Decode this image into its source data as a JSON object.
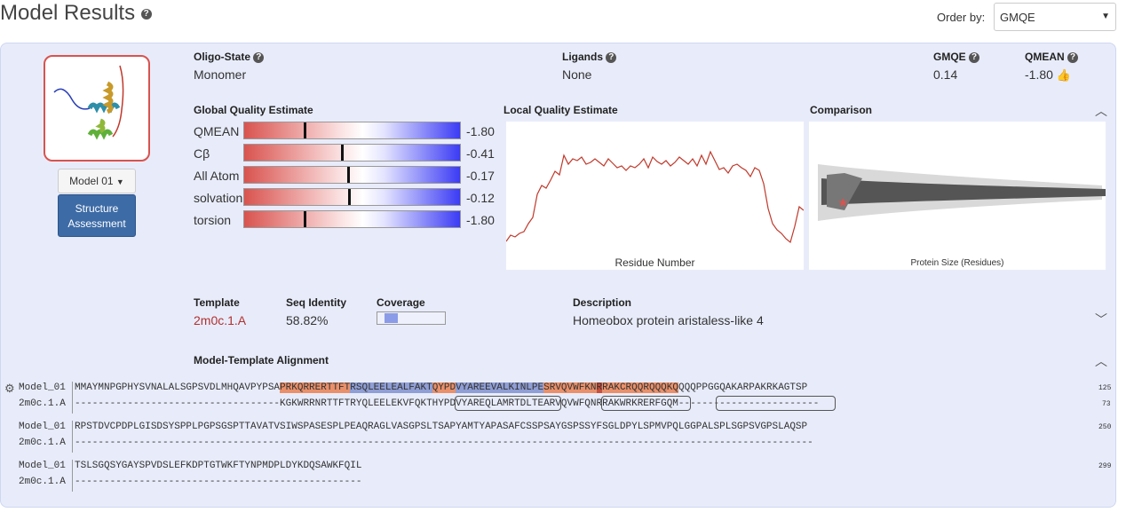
{
  "header": {
    "title": "Model Results",
    "order_label": "Order by:",
    "order_value": "GMQE"
  },
  "model": {
    "selector_label": "Model 01",
    "structure_btn_l1": "Structure",
    "structure_btn_l2": "Assessment"
  },
  "info": {
    "oligo_label": "Oligo-State",
    "oligo_value": "Monomer",
    "ligands_label": "Ligands",
    "ligands_value": "None",
    "gmqe_label": "GMQE",
    "gmqe_value": "0.14",
    "qmean_label": "QMEAN",
    "qmean_value": "-1.80"
  },
  "gqe": {
    "title": "Global Quality Estimate",
    "rows": [
      {
        "label": "QMEAN",
        "value": "-1.80",
        "score": -1.8
      },
      {
        "label": "Cβ",
        "value": "-0.41",
        "score": -0.41
      },
      {
        "label": "All Atom",
        "value": "-0.17",
        "score": -0.17
      },
      {
        "label": "solvation",
        "value": "-0.12",
        "score": -0.12
      },
      {
        "label": "torsion",
        "value": "-1.80",
        "score": -1.8
      }
    ]
  },
  "lqe": {
    "title": "Local Quality Estimate",
    "xlabel": "Residue Number"
  },
  "comparison": {
    "title": "Comparison",
    "xlabel": "Protein Size (Residues)"
  },
  "template": {
    "template_label": "Template",
    "template_value": "2m0c.1.A",
    "seqid_label": "Seq Identity",
    "seqid_value": "58.82%",
    "coverage_label": "Coverage",
    "coverage_fraction": 0.2,
    "desc_label": "Description",
    "desc_value": "Homeobox protein aristaless-like 4"
  },
  "alignment": {
    "title": "Model-Template Alignment",
    "blocks": [
      {
        "model_name": "Model_01",
        "template_name": "2m0c.1.A",
        "model_pre": "MMAYMNPGPHYSVNALALSGPSVDLMHQAVPYPSA",
        "model_hl1": "PRKQRRERTTFT",
        "model_hl2": "RSQLEELEALFAKT",
        "model_hl3": "QYPD",
        "model_hl4": "VYAREEVALKINLPE",
        "model_hl5": "SRVQVWFKN",
        "model_hl6": "R",
        "model_hl7": "RAKCRQQRQQQKQ",
        "model_post": "QQQPPGGQAKARPAKRKAGTSP",
        "model_end": "125",
        "template_line": "-----------------------------------KGKWRRNRTTFTRYQLEELEKVFQKTHYPDVYAREQLAMRTDLTEARVQVWFQNRRAKWRKRERFGQM------------------------",
        "template_end": "73"
      },
      {
        "model_name": "Model_01",
        "template_name": "2m0c.1.A",
        "model_line": "RPSTDVCPDPLGISDSYSPPLPGPSGSPTTAVATVSIWSPASESPLPEAQRAGLVASGPSLTSAPYAMTYAPASAFCSSPSAYGSPSSYFSGLDPYLSPMVPQLGGPALSPLSGPSVGPSLAQSP",
        "model_end": "250",
        "template_line": "------------------------------------------------------------------------------------------------------------------------------"
      },
      {
        "model_name": "Model_01",
        "template_name": "2m0c.1.A",
        "model_line": "TSLSGQSYGAYSPVDSLEFKDPTGTWKFTYNPMDPLDYKDQSAWKFQIL",
        "model_end": "299",
        "template_line": "-------------------------------------------------"
      }
    ]
  },
  "colors": {
    "panel_bg": "#e8ecfa",
    "accent_red": "#d9534f",
    "button_blue": "#3d6ba6"
  }
}
